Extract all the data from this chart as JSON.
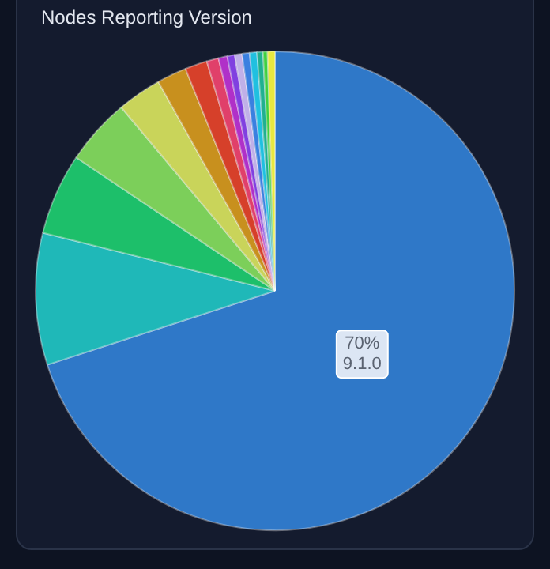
{
  "chart_data": {
    "type": "pie",
    "title": "Nodes Reporting Version",
    "categories": [
      "9.1.0",
      null,
      null,
      null,
      null,
      null,
      null,
      null,
      null,
      null,
      null,
      null,
      null,
      null,
      null,
      null
    ],
    "values": [
      70,
      8.9,
      5.5,
      4.5,
      3,
      2,
      1.5,
      0.8,
      0.6,
      0.5,
      0.5,
      0.5,
      0.5,
      0.4,
      0.3,
      0.5
    ],
    "value_labels": [
      "70%",
      null,
      null,
      null,
      null,
      null,
      null,
      null,
      null,
      null,
      null,
      null,
      null,
      null,
      null,
      null
    ],
    "colors": [
      "#2f78c8",
      "#1fb8b8",
      "#1dbf6a",
      "#7ccf5a",
      "#c9d45a",
      "#c8901e",
      "#d6402a",
      "#e0406a",
      "#b030c8",
      "#8040e0",
      "#c0b0e8",
      "#3a80e0",
      "#20c0e0",
      "#20b090",
      "#40d040",
      "#e8e840"
    ],
    "legend": false
  }
}
